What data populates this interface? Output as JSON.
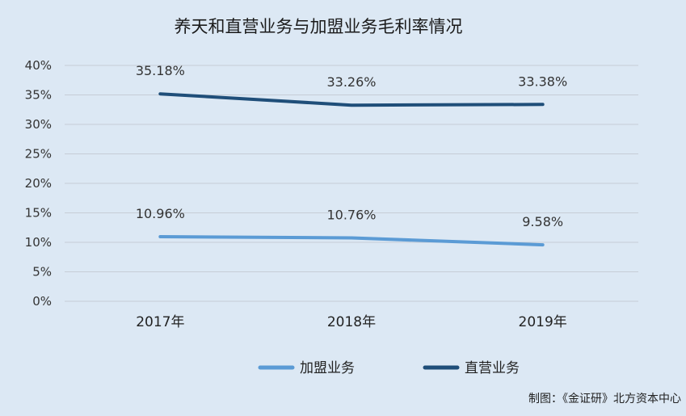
{
  "chart_data": {
    "type": "line",
    "title": "养天和直营业务与加盟业务毛利率情况",
    "categories": [
      "2017年",
      "2018年",
      "2019年"
    ],
    "ylim": [
      0,
      40
    ],
    "yticks": [
      "0%",
      "5%",
      "10%",
      "15%",
      "20%",
      "25%",
      "30%",
      "35%",
      "40%"
    ],
    "grid": true,
    "legend_position": "bottom",
    "series": [
      {
        "name": "加盟业务",
        "values": [
          10.96,
          10.76,
          9.58
        ],
        "labels": [
          "10.96%",
          "10.76%",
          "9.58%"
        ],
        "color": "#5b9bd5"
      },
      {
        "name": "直营业务",
        "values": [
          35.18,
          33.26,
          33.38
        ],
        "labels": [
          "35.18%",
          "33.26%",
          "33.38%"
        ],
        "color": "#1f4e79"
      }
    ]
  },
  "source_note": "制图：《金证研》北方资本中心"
}
